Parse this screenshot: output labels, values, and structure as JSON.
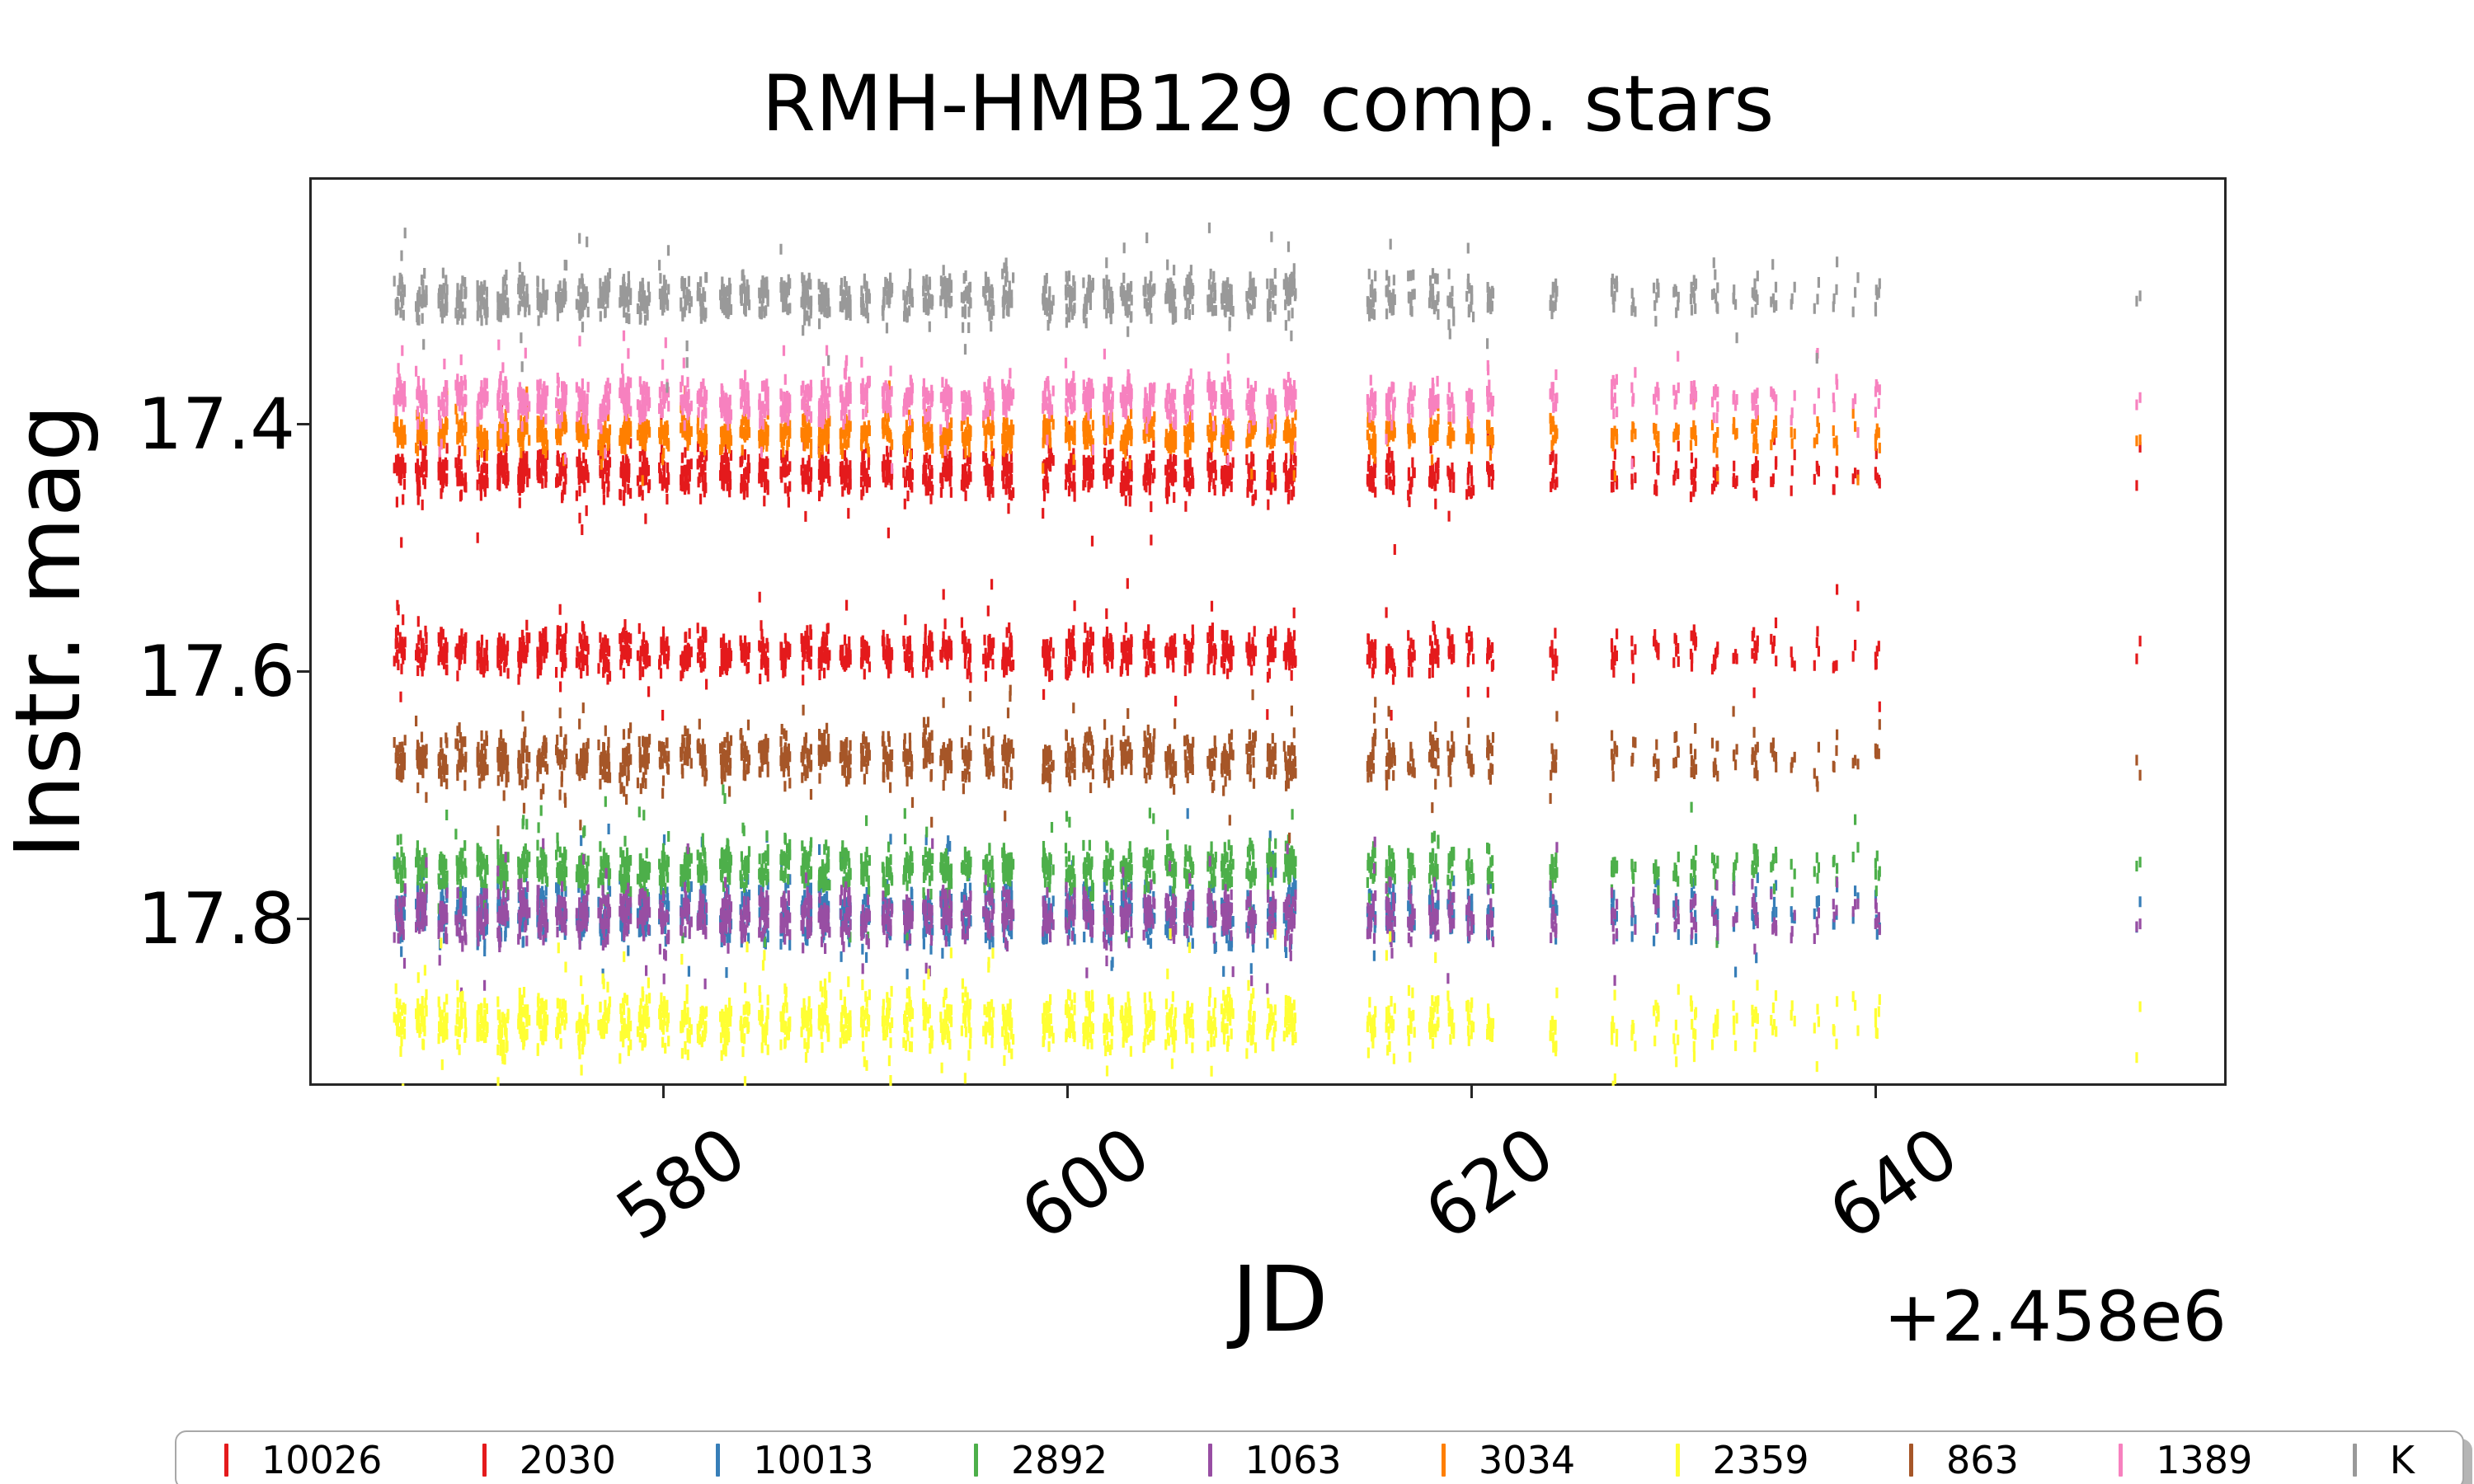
{
  "figure": {
    "title": "RMH-HMB129 comp. stars"
  },
  "axes": {
    "xlabel": "JD",
    "ylabel": "Instr. mag",
    "x_offset_text": "+2.458e6",
    "xtick_labels": [
      "580",
      "600",
      "620",
      "640"
    ],
    "ytick_labels": [
      "17.4",
      "17.6",
      "17.8"
    ]
  },
  "chart_data": {
    "type": "scatter",
    "title": "RMH-HMB129 comp. stars",
    "xlabel": "JD",
    "ylabel": "Instr. mag",
    "x_offset_label": "+2.458e6",
    "x_offset_value": 2458000,
    "xlim": [
      562.45,
      657.35
    ],
    "ylim": [
      17.935,
      17.2
    ],
    "y_axis_inverted": true,
    "grid": false,
    "marker": "|",
    "legend_position": "bottom-horizontal",
    "xticks": [
      580,
      600,
      620,
      640
    ],
    "yticks": [
      17.4,
      17.6,
      17.8
    ],
    "series": [
      {
        "name": "10026",
        "color": "#e41a1c",
        "mag_mean": 17.44,
        "mag_sigma": 0.0085
      },
      {
        "name": "2030",
        "color": "#e41a1c",
        "mag_mean": 17.584,
        "mag_sigma": 0.008
      },
      {
        "name": "10013",
        "color": "#377eb8",
        "mag_mean": 17.795,
        "mag_sigma": 0.0115
      },
      {
        "name": "2892",
        "color": "#4daf4a",
        "mag_mean": 17.759,
        "mag_sigma": 0.0085
      },
      {
        "name": "1063",
        "color": "#984ea3",
        "mag_mean": 17.797,
        "mag_sigma": 0.0098
      },
      {
        "name": "3034",
        "color": "#ff7f00",
        "mag_mean": 17.407,
        "mag_sigma": 0.006
      },
      {
        "name": "2359",
        "color": "#ffff33",
        "mag_mean": 17.884,
        "mag_sigma": 0.0108
      },
      {
        "name": "863",
        "color": "#a65628",
        "mag_mean": 17.67,
        "mag_sigma": 0.009
      },
      {
        "name": "1389",
        "color": "#f781bf",
        "mag_mean": 17.38,
        "mag_sigma": 0.0078
      },
      {
        "name": "K",
        "color": "#999999",
        "mag_mean": 17.297,
        "mag_sigma": 0.0085
      }
    ],
    "observing_blocks": [
      {
        "jd_start": 567,
        "jd_end": 597,
        "obs_per_night_min": 22,
        "obs_per_night_max": 36
      },
      {
        "jd_start": 599,
        "jd_end": 611,
        "obs_per_night_min": 20,
        "obs_per_night_max": 34
      },
      {
        "jd_start": 615,
        "jd_end": 621,
        "obs_per_night_min": 12,
        "obs_per_night_max": 22
      },
      {
        "jd_start": 624,
        "jd_end": 624,
        "obs_per_night_min": 8,
        "obs_per_night_max": 12
      },
      {
        "jd_start": 627,
        "jd_end": 634,
        "obs_per_night_min": 5,
        "obs_per_night_max": 12
      },
      {
        "jd_start": 635,
        "jd_end": 640,
        "obs_per_night_min": 2,
        "obs_per_night_max": 6
      },
      {
        "jd_start": 653,
        "jd_end": 653,
        "obs_per_night_min": 1,
        "obs_per_night_max": 2
      }
    ]
  }
}
